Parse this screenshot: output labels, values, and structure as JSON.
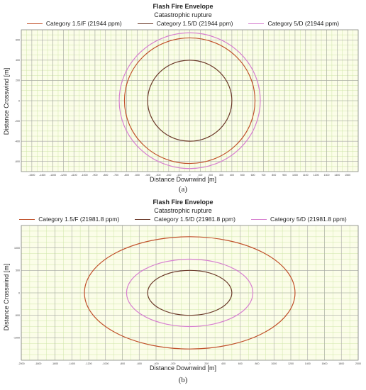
{
  "chart_data": [
    {
      "type": "line",
      "title": "Flash Fire Envelope",
      "subtitle": "Catastrophic rupture",
      "xlabel": "Distance Downwind [m]",
      "ylabel": "Distance Crosswind [m]",
      "caption": "(a)",
      "xlim": [
        -1600,
        1600
      ],
      "ylim": [
        -700,
        700
      ],
      "grid": true,
      "legend_position": "top",
      "x_ticks": [
        "-1500",
        "-1400",
        "-1300",
        "-1200",
        "-1100",
        "-1000",
        "-900",
        "-800",
        "-700",
        "-600",
        "-500",
        "-400",
        "-300",
        "-200",
        "-100",
        "0",
        "100",
        "200",
        "300",
        "400",
        "500",
        "600",
        "700",
        "800",
        "900",
        "1000",
        "1100",
        "1200",
        "1300",
        "1400",
        "1500"
      ],
      "y_ticks": [
        "600",
        "400",
        "200",
        "0",
        "-200",
        "-400",
        "-600"
      ],
      "series": [
        {
          "name": "Category 1.5/F (21944 ppm)",
          "shape": "circle",
          "center_x": 0,
          "center_y": 0,
          "radius": 620,
          "color": "#c0502a"
        },
        {
          "name": "Category 1.5/D (21944 ppm)",
          "shape": "circle",
          "center_x": 0,
          "center_y": 0,
          "radius": 400,
          "color": "#6b3a2a"
        },
        {
          "name": "Category 5/D (21944 ppm)",
          "shape": "circle",
          "center_x": 0,
          "center_y": 0,
          "radius": 670,
          "color": "#d77fd0"
        }
      ]
    },
    {
      "type": "line",
      "title": "Flash Fire Envelope",
      "subtitle": "Catastrophic rupture",
      "xlabel": "Distance Downwind [m]",
      "ylabel": "Distance Crosswind [m]",
      "caption": "(b)",
      "xlim": [
        -2000,
        2000
      ],
      "ylim": [
        -1500,
        1500
      ],
      "grid": true,
      "legend_position": "top",
      "x_ticks": [
        "-2000",
        "-1800",
        "-1600",
        "-1400",
        "-1200",
        "-1000",
        "-800",
        "-600",
        "-400",
        "-200",
        "0",
        "200",
        "400",
        "600",
        "800",
        "1000",
        "1200",
        "1400",
        "1600",
        "1800",
        "2000"
      ],
      "y_ticks": [
        "1000",
        "500",
        "0",
        "-500",
        "-1000"
      ],
      "series": [
        {
          "name": "Category 1.5/F (21981.8 ppm)",
          "shape": "circle",
          "center_x": 0,
          "center_y": 0,
          "radius": 1250,
          "color": "#c0502a"
        },
        {
          "name": "Category 1.5/D (21981.8 ppm)",
          "shape": "circle",
          "center_x": 0,
          "center_y": 0,
          "radius": 500,
          "color": "#6b3a2a"
        },
        {
          "name": "Category 5/D (21981.8 ppm)",
          "shape": "circle",
          "center_x": 0,
          "center_y": 0,
          "radius": 750,
          "color": "#d77fd0"
        }
      ]
    }
  ]
}
